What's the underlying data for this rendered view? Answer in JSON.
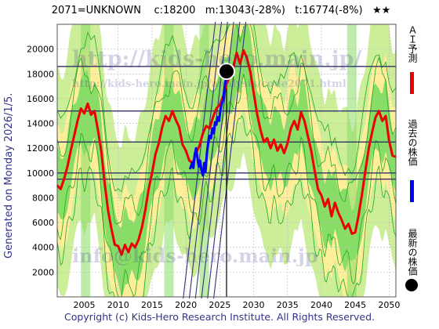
{
  "header": {
    "title": "2071=UNKNOWN    c:18200   m:13043(-28%)   t:16774(-8%)   ★★"
  },
  "side_note": "Generated on Monday 2026/1/5.",
  "footer": {
    "copyright": "Copyright (c) Kids-Hero Research Institute. All Rights Reserved."
  },
  "watermarks": {
    "big": "http://kids-hero.main.jp/",
    "small": "http://kids-hero.main.jp/analysis/code2071.html",
    "bottom": "info@kids-hero.main.jp"
  },
  "legend": {
    "ai_forecast": "ＡＩ予測",
    "past_price": "過去の株価",
    "latest_price": "最新の株価"
  },
  "colors": {
    "forecast_line": "#ee0000",
    "past_line": "#0000ff",
    "band_light": "#ccee99",
    "band_green": "#88dd66",
    "band_yellow": "#ffee99",
    "thin_green": "#22aa22",
    "level_line": "#333366"
  },
  "chart_data": {
    "type": "line",
    "title": "2071=UNKNOWN    c:18200   m:13043(-28%)   t:16774(-8%)   ★★",
    "xlim": [
      2001,
      2051
    ],
    "ylim": [
      0,
      22000
    ],
    "x_ticks": [
      2005,
      2010,
      2015,
      2020,
      2025,
      2030,
      2035,
      2040,
      2045,
      2050
    ],
    "y_ticks": [
      2000,
      4000,
      6000,
      8000,
      10000,
      12000,
      14000,
      16000,
      18000,
      20000
    ],
    "grid": true,
    "current_marker": {
      "x": 2026.0,
      "y": 18200
    },
    "now_line_x": 2026.0,
    "horizontal_levels": [
      18600,
      15000,
      12500,
      10000,
      9500
    ],
    "series": [
      {
        "name": "ＡＩ予測",
        "points": [
          [
            2001,
            9000
          ],
          [
            2001.5,
            8700
          ],
          [
            2002,
            9500
          ],
          [
            2002.5,
            10500
          ],
          [
            2003,
            11800
          ],
          [
            2003.5,
            13000
          ],
          [
            2004,
            14200
          ],
          [
            2004.5,
            15200
          ],
          [
            2005,
            14800
          ],
          [
            2005.5,
            15600
          ],
          [
            2006,
            14700
          ],
          [
            2006.5,
            15000
          ],
          [
            2007,
            13500
          ],
          [
            2007.5,
            11800
          ],
          [
            2008,
            9200
          ],
          [
            2008.5,
            7000
          ],
          [
            2009,
            5500
          ],
          [
            2009.5,
            4200
          ],
          [
            2010,
            4100
          ],
          [
            2010.5,
            3400
          ],
          [
            2011,
            4200
          ],
          [
            2011.5,
            3600
          ],
          [
            2012,
            4300
          ],
          [
            2012.5,
            4000
          ],
          [
            2013,
            4600
          ],
          [
            2013.5,
            5600
          ],
          [
            2014,
            7000
          ],
          [
            2014.5,
            8700
          ],
          [
            2015,
            10000
          ],
          [
            2015.5,
            11500
          ],
          [
            2016,
            12400
          ],
          [
            2016.5,
            13700
          ],
          [
            2017,
            14600
          ],
          [
            2017.5,
            14200
          ],
          [
            2018,
            15000
          ],
          [
            2018.5,
            14300
          ],
          [
            2019,
            13700
          ],
          [
            2019.5,
            12300
          ],
          [
            2020,
            11800
          ],
          [
            2020.5,
            11000
          ],
          [
            2021,
            10800
          ],
          [
            2021.5,
            11600
          ],
          [
            2022,
            12200
          ],
          [
            2022.5,
            13200
          ],
          [
            2023,
            13800
          ],
          [
            2023.5,
            13600
          ],
          [
            2024,
            14500
          ],
          [
            2024.5,
            15200
          ],
          [
            2025,
            15500
          ],
          [
            2025.5,
            16200
          ],
          [
            2026,
            17200
          ],
          [
            2026.5,
            17800
          ],
          [
            2027,
            18600
          ],
          [
            2027.5,
            19700
          ],
          [
            2028,
            18800
          ],
          [
            2028.5,
            19900
          ],
          [
            2029,
            19300
          ],
          [
            2029.5,
            18200
          ],
          [
            2030,
            16500
          ],
          [
            2030.5,
            14800
          ],
          [
            2031,
            13500
          ],
          [
            2031.5,
            12500
          ],
          [
            2032,
            12800
          ],
          [
            2032.5,
            12000
          ],
          [
            2033,
            12700
          ],
          [
            2033.5,
            11800
          ],
          [
            2034,
            12300
          ],
          [
            2034.5,
            11600
          ],
          [
            2035,
            12400
          ],
          [
            2035.5,
            13600
          ],
          [
            2036,
            14200
          ],
          [
            2036.5,
            13500
          ],
          [
            2037,
            14900
          ],
          [
            2037.5,
            14200
          ],
          [
            2038,
            13000
          ],
          [
            2038.5,
            11800
          ],
          [
            2039,
            10200
          ],
          [
            2039.5,
            8700
          ],
          [
            2040,
            8200
          ],
          [
            2040.5,
            7300
          ],
          [
            2041,
            7900
          ],
          [
            2041.5,
            6500
          ],
          [
            2042,
            7600
          ],
          [
            2042.5,
            6800
          ],
          [
            2043,
            6200
          ],
          [
            2043.5,
            5500
          ],
          [
            2044,
            5900
          ],
          [
            2044.5,
            5100
          ],
          [
            2045,
            5200
          ],
          [
            2045.5,
            6600
          ],
          [
            2046,
            8300
          ],
          [
            2046.5,
            10200
          ],
          [
            2047,
            12000
          ],
          [
            2047.5,
            13300
          ],
          [
            2048,
            14500
          ],
          [
            2048.5,
            15000
          ],
          [
            2049,
            14200
          ],
          [
            2049.5,
            14600
          ],
          [
            2050,
            12600
          ],
          [
            2050.5,
            11400
          ],
          [
            2051,
            11300
          ]
        ]
      },
      {
        "name": "過去の株価",
        "points": [
          [
            2020.6,
            10300
          ],
          [
            2020.9,
            10800
          ],
          [
            2021.1,
            10400
          ],
          [
            2021.3,
            11500
          ],
          [
            2021.5,
            12000
          ],
          [
            2021.7,
            11200
          ],
          [
            2021.9,
            10500
          ],
          [
            2022.1,
            11000
          ],
          [
            2022.3,
            10200
          ],
          [
            2022.5,
            9800
          ],
          [
            2022.7,
            10800
          ],
          [
            2022.9,
            10100
          ],
          [
            2023.1,
            11600
          ],
          [
            2023.3,
            12400
          ],
          [
            2023.5,
            13000
          ],
          [
            2023.7,
            12800
          ],
          [
            2023.9,
            13600
          ],
          [
            2024.1,
            13200
          ],
          [
            2024.3,
            14100
          ],
          [
            2024.5,
            13900
          ],
          [
            2024.7,
            14500
          ],
          [
            2024.9,
            14200
          ],
          [
            2025.1,
            15100
          ],
          [
            2025.3,
            15600
          ],
          [
            2025.5,
            15900
          ],
          [
            2025.7,
            16900
          ],
          [
            2025.9,
            17600
          ],
          [
            2026.0,
            18200
          ]
        ]
      }
    ]
  }
}
